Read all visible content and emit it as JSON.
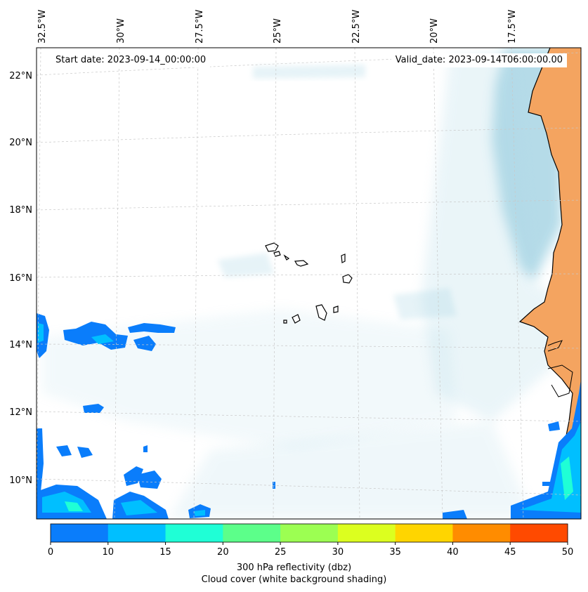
{
  "annotations": {
    "start_date": "Start date: 2023-09-14_00:00:00",
    "valid_date": "Valid_date: 2023-09-14T06:00:00.00"
  },
  "map": {
    "lon_labels": [
      "32.5°W",
      "30°W",
      "27.5°W",
      "25°W",
      "22.5°W",
      "20°W",
      "17.5°W"
    ],
    "lat_labels": [
      "22°N",
      "20°N",
      "18°N",
      "16°N",
      "14°N",
      "12°N",
      "10°N"
    ],
    "land_color": "#f4a460",
    "cloud_color": "#add8e6",
    "coast_color": "#000000",
    "grid_style": "dashed light gray"
  },
  "colorbar": {
    "label": "300 hPa reflectivity (dbz)",
    "sublabel": "Cloud cover (white background shading)",
    "ticks": [
      "0",
      "10",
      "15",
      "20",
      "25",
      "30",
      "35",
      "40",
      "45",
      "50"
    ],
    "colors": [
      "#0a7dfb",
      "#00bfff",
      "#1fffd6",
      "#5cff8a",
      "#9cff52",
      "#dcff1f",
      "#ffd500",
      "#ff8c00",
      "#ff4a00"
    ]
  }
}
